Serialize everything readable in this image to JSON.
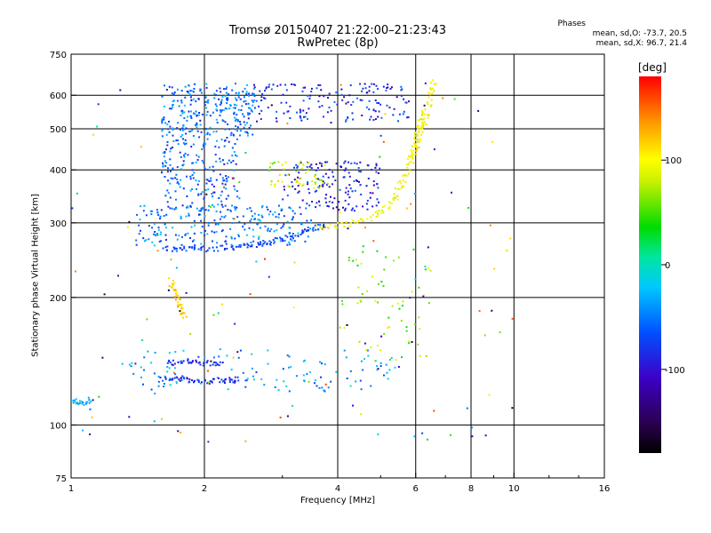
{
  "header": {
    "title_line1": "Tromsø 20150407 21:22:00–21:23:43",
    "title_line2": "RwPretec (8p)",
    "phases_title": "Phases",
    "phases_o": "mean, sd,O: -73.7, 20.5",
    "phases_x": "mean, sd,X:  96.7, 21.4"
  },
  "colorbar": {
    "unit": "[deg]",
    "range": [
      -180,
      180
    ],
    "ticks": [
      100,
      0,
      -100
    ],
    "tick_labels": [
      "100",
      "0",
      "-100"
    ]
  },
  "chart_data": {
    "type": "scatter",
    "xlabel": "Frequency [MHz]",
    "ylabel": "Stationary phase Virtual Height [km]",
    "x_scale": "log",
    "y_scale": "log",
    "xlim": [
      1,
      16
    ],
    "ylim": [
      75,
      750
    ],
    "x_ticks": [
      1,
      2,
      4,
      6,
      8,
      10,
      16
    ],
    "x_tick_labels": [
      "1",
      "2",
      "4",
      "6",
      "8",
      "10",
      "16"
    ],
    "x_grid": [
      2,
      4,
      6,
      8,
      10
    ],
    "y_ticks": [
      75,
      100,
      200,
      300,
      400,
      500,
      600,
      750
    ],
    "y_tick_labels": [
      "75",
      "100",
      "200",
      "300",
      "400",
      "500",
      "600",
      "750"
    ],
    "y_grid": [
      100,
      200,
      300,
      400,
      500,
      600
    ],
    "grid": true,
    "trace_groups": [
      {
        "phase": -70,
        "points": [
          [
            1.62,
            261
          ],
          [
            1.8,
            260
          ],
          [
            2.0,
            260
          ],
          [
            2.3,
            262
          ],
          [
            2.6,
            266
          ],
          [
            2.9,
            272
          ],
          [
            3.2,
            280
          ],
          [
            3.5,
            290
          ],
          [
            3.8,
            296
          ]
        ]
      },
      {
        "phase": 95,
        "points": [
          [
            3.6,
            292
          ],
          [
            4.2,
            298
          ],
          [
            4.8,
            310
          ],
          [
            5.2,
            330
          ],
          [
            5.5,
            360
          ],
          [
            5.75,
            400
          ],
          [
            5.95,
            450
          ],
          [
            6.1,
            500
          ],
          [
            6.3,
            560
          ]
        ]
      },
      {
        "phase": 115,
        "points": [
          [
            1.68,
            220
          ],
          [
            1.72,
            205
          ],
          [
            1.76,
            190
          ],
          [
            1.8,
            180
          ]
        ]
      },
      {
        "phase": 100,
        "points": [
          [
            5.9,
            420
          ],
          [
            6.1,
            470
          ],
          [
            6.3,
            520
          ],
          [
            6.5,
            600
          ],
          [
            6.6,
            650
          ]
        ]
      },
      {
        "phase": -85,
        "points": [
          [
            1.65,
            140
          ],
          [
            1.8,
            141
          ],
          [
            2.0,
            140
          ],
          [
            2.2,
            140
          ]
        ]
      },
      {
        "phase": -85,
        "points": [
          [
            1.65,
            128
          ],
          [
            1.8,
            128
          ],
          [
            2.0,
            127
          ],
          [
            2.2,
            127
          ],
          [
            2.4,
            128
          ]
        ]
      },
      {
        "phase": -30,
        "points": [
          [
            1.0,
            115
          ],
          [
            1.05,
            112
          ],
          [
            1.12,
            115
          ]
        ]
      }
    ],
    "scatter_regions": [
      {
        "xr": [
          1.6,
          2.6
        ],
        "yr": [
          480,
          640
        ],
        "phase": -55,
        "n": 260
      },
      {
        "xr": [
          1.6,
          2.4
        ],
        "yr": [
          320,
          480
        ],
        "phase": -60,
        "n": 200
      },
      {
        "xr": [
          1.4,
          3.5
        ],
        "yr": [
          265,
          330
        ],
        "phase": -50,
        "n": 230
      },
      {
        "xr": [
          2.5,
          5.8
        ],
        "yr": [
          520,
          640
        ],
        "phase": -85,
        "n": 160
      },
      {
        "xr": [
          3.0,
          5.0
        ],
        "yr": [
          320,
          420
        ],
        "phase": -90,
        "n": 150
      },
      {
        "xr": [
          2.8,
          3.8
        ],
        "yr": [
          360,
          420
        ],
        "phase": 85,
        "n": 50
      },
      {
        "xr": [
          1.3,
          5.5
        ],
        "yr": [
          120,
          150
        ],
        "phase": -40,
        "n": 120
      },
      {
        "xr": [
          4.0,
          6.5
        ],
        "yr": [
          140,
          260
        ],
        "phase": 60,
        "n": 60
      },
      {
        "xr": [
          1.0,
          10.0
        ],
        "yr": [
          90,
          650
        ],
        "phase": 0,
        "n": 150
      }
    ]
  }
}
